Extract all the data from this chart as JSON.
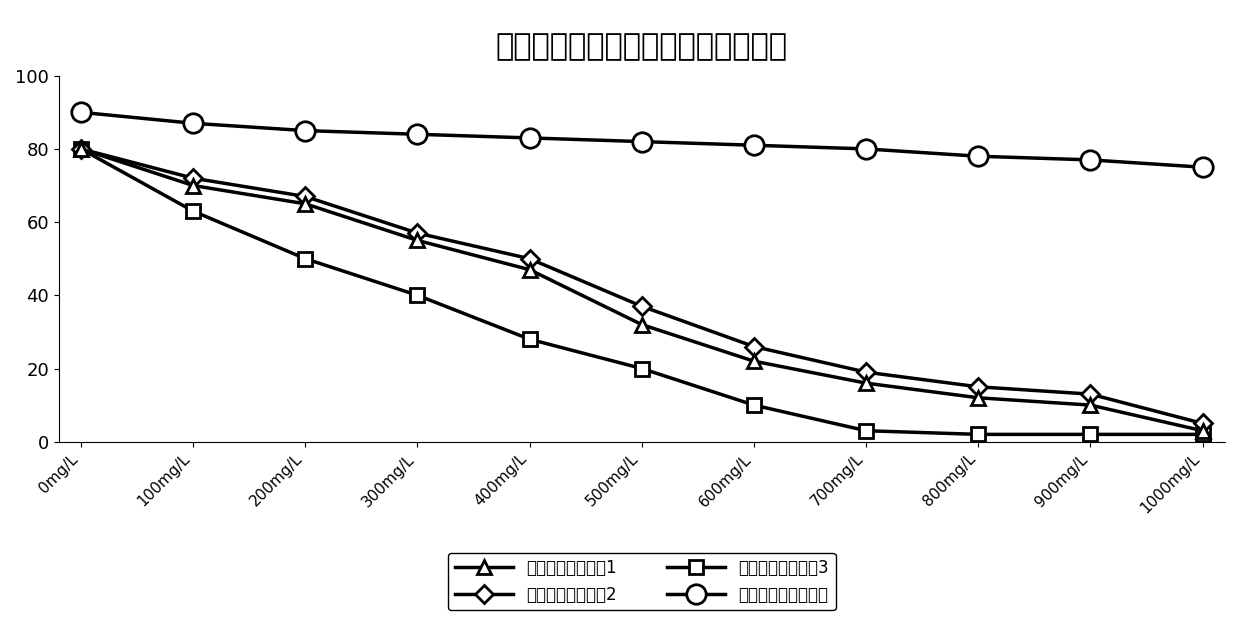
{
  "title": "同类型润滑剂抗钙离子污染能力对比",
  "x_labels": [
    "0mg/L",
    "100mg/L",
    "200mg/L",
    "300mg/L",
    "400mg/L",
    "500mg/L",
    "600mg/L",
    "700mg/L",
    "800mg/L",
    "900mg/L",
    "1000mg/L"
  ],
  "x_values": [
    0,
    100,
    200,
    300,
    400,
    500,
    600,
    700,
    800,
    900,
    1000
  ],
  "ylim": [
    0,
    100
  ],
  "yticks": [
    0,
    20,
    40,
    60,
    80,
    100
  ],
  "series": [
    {
      "label": "市售低荧光润滑剂1",
      "values": [
        80,
        70,
        65,
        55,
        47,
        32,
        22,
        16,
        12,
        10,
        3
      ],
      "marker": "^",
      "markersize": 10,
      "linewidth": 2.5
    },
    {
      "label": "市售低荧光润滑剂2",
      "values": [
        80,
        72,
        67,
        57,
        50,
        37,
        26,
        19,
        15,
        13,
        5
      ],
      "marker": "D",
      "markersize": 9,
      "linewidth": 2.5
    },
    {
      "label": "市售低荧光润滑剂3",
      "values": [
        80,
        63,
        50,
        40,
        28,
        20,
        10,
        3,
        2,
        2,
        2
      ],
      "marker": "s",
      "markersize": 10,
      "linewidth": 2.5
    },
    {
      "label": "本发明低荧光润滑剂",
      "values": [
        90,
        87,
        85,
        84,
        83,
        82,
        81,
        80,
        78,
        77,
        75
      ],
      "marker": "o",
      "markersize": 14,
      "linewidth": 2.5
    }
  ],
  "legend_ncol": 2,
  "background_color": "#ffffff",
  "title_fontsize": 22
}
